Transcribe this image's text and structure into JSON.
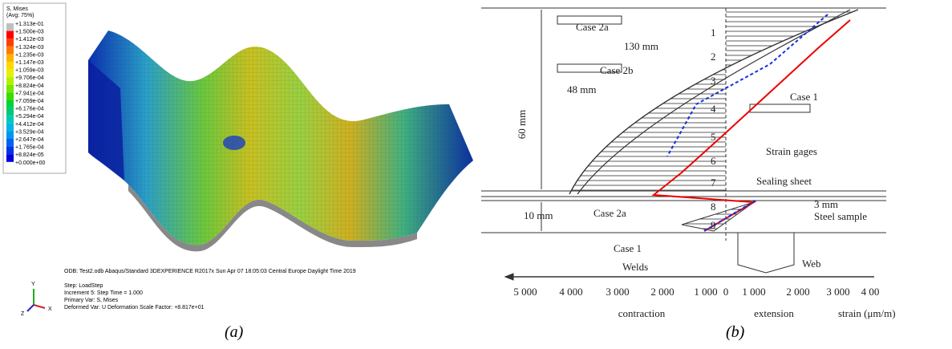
{
  "panel_a": {
    "legend_title": [
      "S, Mises",
      "(Avg: 75%)"
    ],
    "legend_labels": [
      "+1.313e-01",
      "+1.500e-03",
      "+1.412e-03",
      "+1.324e-03",
      "+1.235e-03",
      "+1.147e-03",
      "+1.059e-03",
      "+9.706e-04",
      "+8.824e-04",
      "+7.941e-04",
      "+7.059e-04",
      "+6.176e-04",
      "+5.294e-04",
      "+4.412e-04",
      "+3.529e-04",
      "+2.647e-04",
      "+1.765e-04",
      "+8.824e-05",
      "+0.000e+00"
    ],
    "legend_colors": [
      "#c0c0c0",
      "#ff0000",
      "#ff3d00",
      "#ff7a00",
      "#ffb400",
      "#ffd800",
      "#e6f000",
      "#b4f000",
      "#78e600",
      "#3cdc00",
      "#00d23c",
      "#00c878",
      "#00c8b4",
      "#00b4e6",
      "#0096f0",
      "#0064f0",
      "#0032e6",
      "#0000dc"
    ],
    "triad": [
      "Y",
      "Z",
      "X"
    ],
    "info": [
      "ODB: Test2.odb    Abaqus/Standard 3DEXPERIENCE R2017x    Sun Apr 07 18:05:03 Central Europe Daylight Time 2019",
      "Step: LoadStep",
      "Increment     5: Step Time =    1.000",
      "Primary Var: S, Mises",
      "Deformed Var: U   Deformation Scale Factor: +8.817e+01"
    ],
    "caption": "(a)"
  },
  "panel_b": {
    "labels": [
      "Case 2a",
      "130 mm",
      "Case 2b",
      "48 mm",
      "Case 1",
      "Strain gages",
      "Sealing sheet",
      "3 mm",
      "10 mm",
      "Case 2a",
      "Steel sample",
      "Case 1",
      "Welds",
      "Web"
    ],
    "vertical_label": "60 mm",
    "gage_numbers": [
      "1",
      "2",
      "3",
      "4",
      "5",
      "6",
      "7",
      "8",
      "9"
    ],
    "axis_ticks": [
      "5 000",
      "4 000",
      "3 000",
      "2 000",
      "1 000",
      "0",
      "1 000",
      "2 000",
      "3 000",
      "4 00"
    ],
    "axis_labels": [
      "contraction",
      "extension",
      "strain (μm/m)"
    ],
    "caption": "(b)"
  }
}
